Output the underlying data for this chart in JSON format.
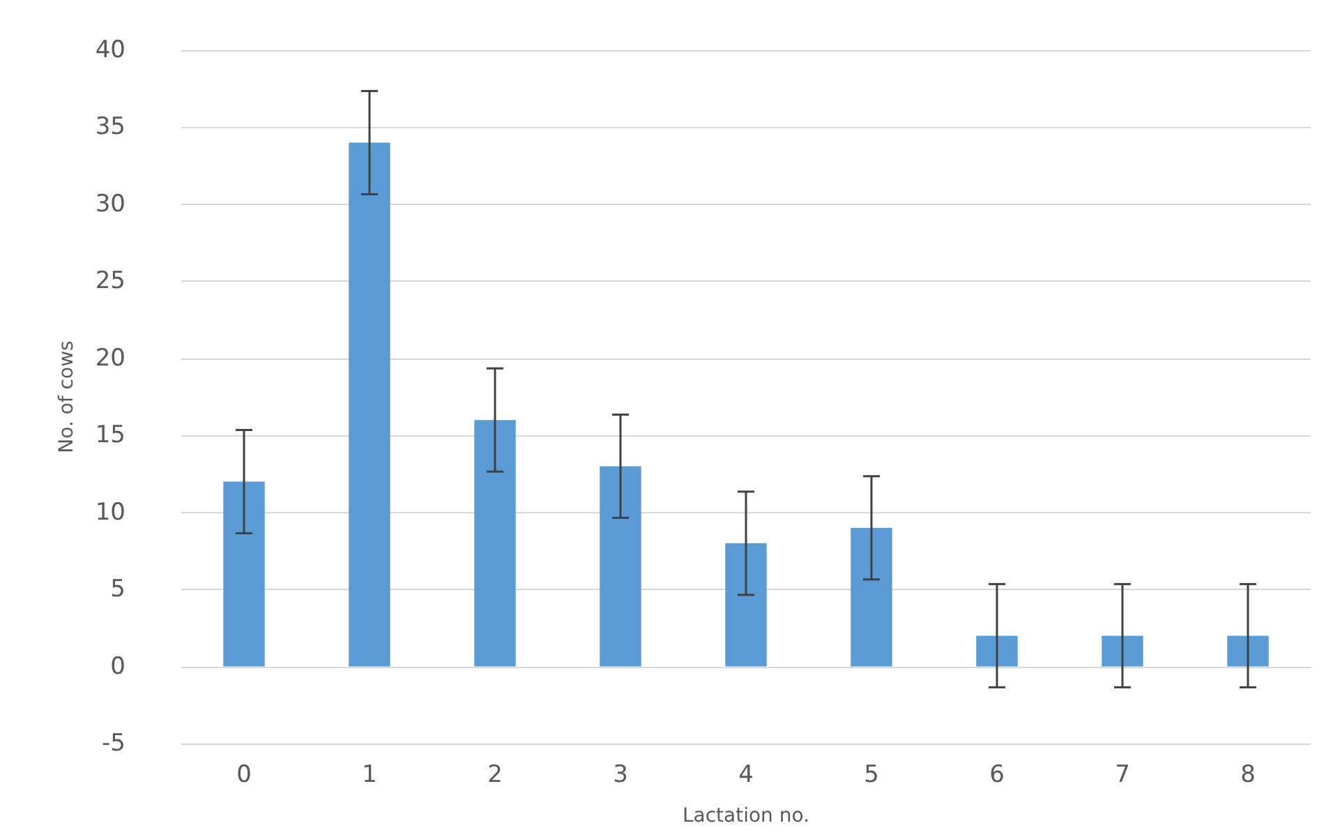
{
  "chart_data": {
    "type": "bar",
    "xlabel": "Lactation no.",
    "ylabel": "No. of cows",
    "categories": [
      "0",
      "1",
      "2",
      "3",
      "4",
      "5",
      "6",
      "7",
      "8"
    ],
    "values": [
      12,
      34,
      16,
      13,
      8,
      9,
      2,
      2,
      2
    ],
    "errors": [
      3.35,
      3.35,
      3.35,
      3.35,
      3.35,
      3.35,
      3.35,
      3.35,
      3.35
    ],
    "color": "#5b9bd5",
    "ylim": [
      -5,
      40
    ],
    "yticks": [
      -5,
      0,
      5,
      10,
      15,
      20,
      25,
      30,
      35,
      40
    ],
    "grid": "y"
  }
}
